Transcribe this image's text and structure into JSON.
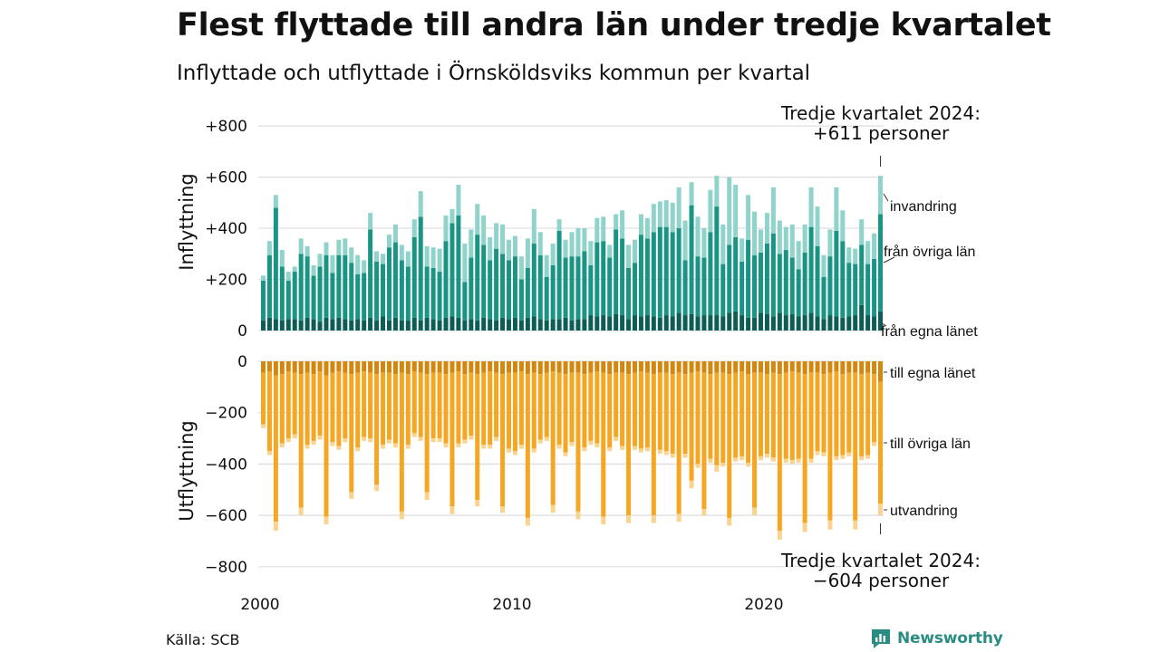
{
  "title": "Flest flyttade till andra län under tredje kvartalet",
  "subtitle": "Inflyttade och utflyttade i Örnsköldsviks kommun per kvartal",
  "source": "Källa: SCB",
  "brand": "Newsworthy",
  "colors": {
    "in_same_county": "#0d5c55",
    "in_other_counties": "#1a9585",
    "immigration": "#8fd3cb",
    "out_same_county": "#d4870e",
    "out_other_counties": "#f5a623",
    "emigration": "#f9d390",
    "grid": "#dddddd"
  },
  "chart_data": {
    "type": "bar",
    "stacked": true,
    "x_start": "2000 Q1",
    "x_end": "2024 Q3",
    "xticks": [
      "2000",
      "2010",
      "2020"
    ],
    "panels": [
      {
        "name": "inflyttning",
        "ylabel": "Inflyttning",
        "ylim": [
          0,
          850
        ],
        "yticks": [
          "0",
          "+200",
          "+400",
          "+600",
          "+800"
        ],
        "ytick_values": [
          0,
          200,
          400,
          600,
          800
        ],
        "series": [
          {
            "name": "från egna länet",
            "color": "#0d5c55",
            "values": [
              40,
              50,
              45,
              40,
              45,
              45,
              40,
              50,
              45,
              35,
              50,
              45,
              50,
              45,
              40,
              45,
              40,
              50,
              40,
              55,
              40,
              50,
              40,
              40,
              50,
              40,
              50,
              45,
              40,
              50,
              55,
              50,
              40,
              45,
              40,
              50,
              45,
              40,
              50,
              45,
              50,
              40,
              50,
              55,
              45,
              40,
              45,
              45,
              50,
              40,
              45,
              45,
              60,
              55,
              60,
              55,
              65,
              60,
              45,
              60,
              55,
              60,
              55,
              50,
              60,
              55,
              70,
              60,
              65,
              55,
              60,
              60,
              60,
              55,
              70,
              75,
              60,
              50,
              50,
              70,
              65,
              55,
              70,
              60,
              65,
              55,
              60,
              70,
              55,
              45,
              60,
              55,
              50,
              55,
              60,
              100,
              60,
              55,
              75
            ]
          },
          {
            "name": "från övriga län",
            "color": "#1a9585",
            "values": [
              155,
              245,
              435,
              210,
              150,
              185,
              260,
              240,
              170,
              215,
              245,
              180,
              245,
              250,
              225,
              175,
              185,
              345,
              230,
              205,
              285,
              295,
              235,
              210,
              315,
              405,
              200,
              200,
              190,
              300,
              365,
              400,
              150,
              240,
              335,
              285,
              230,
              280,
              250,
              230,
              240,
              160,
              195,
              285,
              250,
              170,
              210,
              345,
              235,
              250,
              245,
              265,
              195,
              290,
              290,
              230,
              330,
              300,
              200,
              205,
              320,
              300,
              330,
              355,
              345,
              330,
              330,
              215,
              425,
              235,
              225,
              325,
              425,
              205,
              265,
              290,
              210,
              305,
              245,
              235,
              275,
              325,
              230,
              255,
              220,
              185,
              245,
              335,
              275,
              165,
              230,
              335,
              300,
              210,
              200,
              235,
              200,
              225,
              380
            ]
          },
          {
            "name": "invandring",
            "color": "#8fd3cb",
            "values": [
              20,
              55,
              50,
              65,
              35,
              20,
              60,
              40,
              40,
              50,
              50,
              70,
              60,
              65,
              60,
              75,
              50,
              65,
              40,
              40,
              50,
              70,
              60,
              60,
              70,
              100,
              80,
              80,
              90,
              100,
              55,
              120,
              150,
              110,
              120,
              115,
              90,
              100,
              115,
              80,
              80,
              90,
              115,
              135,
              90,
              85,
              85,
              45,
              70,
              95,
              110,
              90,
              95,
              95,
              95,
              50,
              60,
              110,
              90,
              90,
              80,
              80,
              110,
              100,
              105,
              115,
              160,
              155,
              90,
              155,
              115,
              165,
              120,
              155,
              265,
              205,
              90,
              175,
              170,
              90,
              120,
              180,
              130,
              90,
              130,
              110,
              110,
              155,
              155,
              85,
              105,
              170,
              120,
              60,
              60,
              100,
              90,
              100,
              150
            ]
          }
        ]
      },
      {
        "name": "utflyttning",
        "ylabel": "Utflyttning",
        "ylim": [
          -850,
          0
        ],
        "yticks": [
          "0",
          "−200",
          "−400",
          "−600",
          "−800"
        ],
        "ytick_values": [
          0,
          -200,
          -400,
          -600,
          -800
        ],
        "series": [
          {
            "name": "till egna länet",
            "color": "#d4870e",
            "values": [
              -45,
              -40,
              -55,
              -50,
              -40,
              -45,
              -50,
              -45,
              -50,
              -40,
              -55,
              -45,
              -40,
              -45,
              -50,
              -45,
              -40,
              -45,
              -50,
              -45,
              -45,
              -50,
              -45,
              -50,
              -40,
              -45,
              -50,
              -45,
              -45,
              -50,
              -45,
              -40,
              -50,
              -45,
              -50,
              -45,
              -40,
              -45,
              -50,
              -45,
              -45,
              -40,
              -50,
              -45,
              -50,
              -45,
              -40,
              -45,
              -50,
              -45,
              -45,
              -50,
              -45,
              -40,
              -45,
              -50,
              -45,
              -45,
              -50,
              -45,
              -40,
              -45,
              -50,
              -45,
              -45,
              -50,
              -45,
              -50,
              -45,
              -40,
              -45,
              -50,
              -45,
              -45,
              -50,
              -45,
              -40,
              -50,
              -45,
              -45,
              -50,
              -45,
              -50,
              -45,
              -40,
              -45,
              -50,
              -45,
              -45,
              -50,
              -45,
              -40,
              -50,
              -45,
              -45,
              -50,
              -45,
              -50,
              -80
            ]
          },
          {
            "name": "till övriga län",
            "color": "#f5a623",
            "values": [
              -200,
              -310,
              -570,
              -270,
              -260,
              -240,
              -520,
              -280,
              -260,
              -250,
              -550,
              -270,
              -290,
              -255,
              -460,
              -290,
              -255,
              -255,
              -430,
              -280,
              -260,
              -270,
              -540,
              -275,
              -240,
              -250,
              -460,
              -255,
              -255,
              -270,
              -520,
              -280,
              -255,
              -245,
              -490,
              -280,
              -285,
              -250,
              -515,
              -295,
              -305,
              -285,
              -560,
              -295,
              -255,
              -250,
              -520,
              -280,
              -305,
              -270,
              -540,
              -285,
              -265,
              -280,
              -560,
              -285,
              -250,
              -285,
              -550,
              -285,
              -300,
              -290,
              -550,
              -300,
              -305,
              -310,
              -550,
              -310,
              -420,
              -360,
              -530,
              -330,
              -360,
              -350,
              -560,
              -330,
              -330,
              -345,
              -525,
              -325,
              -310,
              -330,
              -610,
              -335,
              -345,
              -335,
              -580,
              -335,
              -305,
              -305,
              -575,
              -330,
              -315,
              -310,
              -575,
              -320,
              -320,
              -265,
              -475
            ]
          },
          {
            "name": "utvandring",
            "color": "#f9d390",
            "values": [
              -15,
              -15,
              -35,
              -15,
              -15,
              -15,
              -30,
              -15,
              -15,
              -15,
              -30,
              -15,
              -15,
              -15,
              -25,
              -15,
              -15,
              -15,
              -25,
              -15,
              -15,
              -15,
              -30,
              -15,
              -15,
              -15,
              -30,
              -15,
              -15,
              -15,
              -30,
              -15,
              -15,
              -15,
              -25,
              -15,
              -15,
              -15,
              -25,
              -15,
              -15,
              -15,
              -30,
              -15,
              -15,
              -15,
              -30,
              -15,
              -15,
              -15,
              -30,
              -15,
              -15,
              -15,
              -30,
              -15,
              -15,
              -15,
              -30,
              -15,
              -15,
              -15,
              -30,
              -15,
              -15,
              -15,
              -30,
              -15,
              -30,
              -15,
              -25,
              -15,
              -25,
              -15,
              -30,
              -15,
              -15,
              -15,
              -30,
              -15,
              -15,
              -15,
              -35,
              -15,
              -15,
              -15,
              -35,
              -15,
              -15,
              -15,
              -35,
              -15,
              -15,
              -15,
              -35,
              -15,
              -15,
              -15,
              -45
            ]
          }
        ]
      }
    ],
    "annotations": {
      "top_label_1": "Tredje kvartalet 2024:",
      "top_label_2": "+611 personer",
      "bottom_label_1": "Tredje kvartalet 2024:",
      "bottom_label_2": "−604 personer",
      "in_series_labels": [
        "invandring",
        "från övriga län",
        "från egna länet"
      ],
      "out_series_labels": [
        "till egna länet",
        "till övriga län",
        "utvandring"
      ]
    }
  }
}
